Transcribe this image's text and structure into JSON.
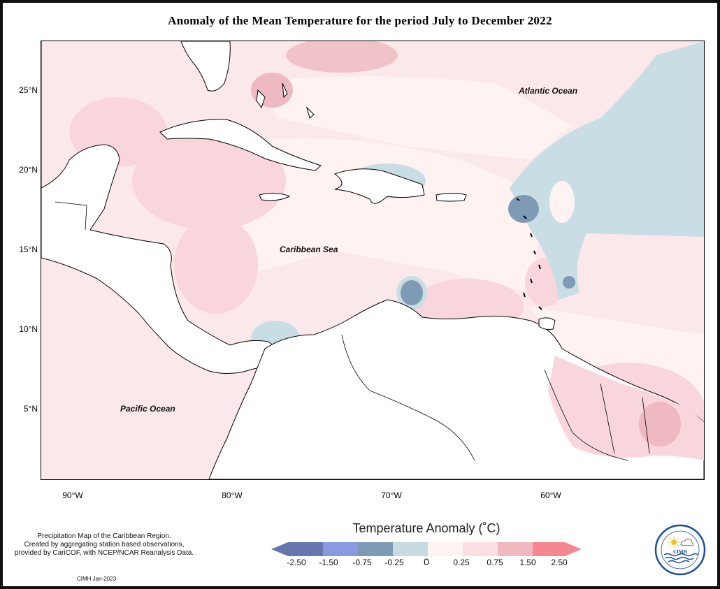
{
  "title": "Anomaly of the Mean Temperature for the period July to December 2022",
  "map": {
    "y_ticks": [
      "25°N",
      "20°N",
      "15°N",
      "10°N",
      "5°N"
    ],
    "x_ticks": [
      "90°W",
      "80°W",
      "70°W",
      "60°W"
    ],
    "labels": {
      "atlantic": "Atlantic Ocean",
      "caribbean": "Caribbean Sea",
      "pacific": "Pacific Ocean"
    }
  },
  "legend": {
    "title": "Temperature Anomaly (˚C)",
    "tick_labels": [
      "-2.50",
      "-1.50",
      "-0.75",
      "-0.25",
      "0",
      "0.25",
      "0.75",
      "1.50",
      "2.50"
    ],
    "colors": [
      "#6777ad",
      "#8a9ae0",
      "#7f9ab5",
      "#c8dbe3",
      "#fff3f1",
      "#fbdfe2",
      "#f0b9c0",
      "#f48790"
    ]
  },
  "note": {
    "line1": "Precipitation Map of the Caribbean Region.",
    "line2": "Created by aggregating station based observations,",
    "line3": "provided by CariCOF, with NCEP/NCAR Reanalysis Data."
  },
  "credit": "CIMH Jan-2023",
  "logo": {
    "text": "CIMH",
    "icon": "cimh-logo-icon"
  }
}
